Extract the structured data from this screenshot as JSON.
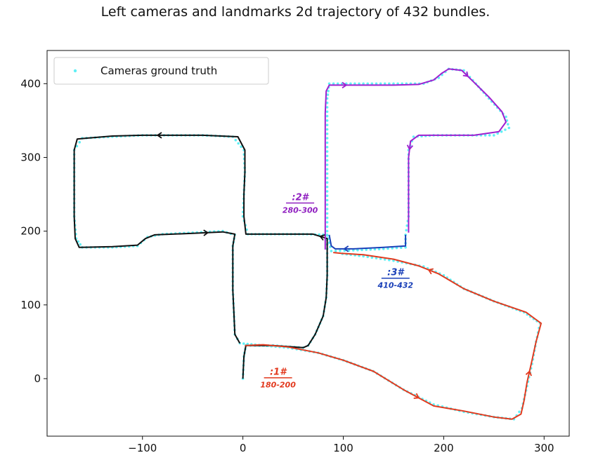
{
  "chart_data": {
    "type": "scatter",
    "title": "Left cameras and landmarks 2d trajectory of 432 bundles.",
    "xlabel": "",
    "ylabel": "",
    "xlim": [
      -195,
      325
    ],
    "ylim": [
      -78,
      445
    ],
    "xticks": [
      -100,
      0,
      100,
      200,
      300
    ],
    "xtick_labels": [
      "−100",
      "0",
      "100",
      "200",
      "300"
    ],
    "yticks": [
      0,
      100,
      200,
      300,
      400
    ],
    "ytick_labels": [
      "0",
      "100",
      "200",
      "300",
      "400"
    ],
    "grid": false,
    "legend": {
      "placement": "top-left",
      "entries": [
        {
          "name": "Cameras ground truth",
          "color": "#5ff0f5",
          "marker": "dot"
        }
      ]
    },
    "series": [
      {
        "name": "Cameras ground truth",
        "style": "dots",
        "color": "#5ff0f5",
        "points": [
          [
            0,
            0
          ],
          [
            1,
            30
          ],
          [
            3,
            45
          ],
          [
            30,
            45
          ],
          [
            60,
            42
          ],
          [
            65,
            45
          ],
          [
            72,
            60
          ],
          [
            80,
            85
          ],
          [
            83,
            110
          ],
          [
            84,
            140
          ],
          [
            84,
            170
          ],
          [
            84,
            200
          ],
          [
            84,
            230
          ],
          [
            84,
            260
          ],
          [
            84,
            290
          ],
          [
            84,
            320
          ],
          [
            84,
            350
          ],
          [
            84,
            380
          ],
          [
            86,
            400
          ],
          [
            120,
            400
          ],
          [
            150,
            400
          ],
          [
            180,
            400
          ],
          [
            195,
            408
          ],
          [
            205,
            420
          ],
          [
            220,
            418
          ],
          [
            232,
            400
          ],
          [
            245,
            380
          ],
          [
            262,
            355
          ],
          [
            265,
            340
          ],
          [
            250,
            330
          ],
          [
            220,
            330
          ],
          [
            190,
            330
          ],
          [
            170,
            328
          ],
          [
            165,
            310
          ],
          [
            165,
            280
          ],
          [
            165,
            250
          ],
          [
            165,
            220
          ],
          [
            162,
            195
          ],
          [
            162,
            178
          ],
          [
            140,
            176
          ],
          [
            110,
            174
          ],
          [
            88,
            173
          ],
          [
            85,
            190
          ],
          [
            84,
            195
          ],
          [
            60,
            196
          ],
          [
            40,
            196
          ],
          [
            20,
            196
          ],
          [
            5,
            196
          ],
          [
            0,
            220
          ],
          [
            1,
            250
          ],
          [
            2,
            280
          ],
          [
            1,
            310
          ],
          [
            -10,
            328
          ],
          [
            -40,
            330
          ],
          [
            -70,
            330
          ],
          [
            -100,
            330
          ],
          [
            -130,
            328
          ],
          [
            -160,
            326
          ],
          [
            -168,
            310
          ],
          [
            -168,
            280
          ],
          [
            -168,
            250
          ],
          [
            -168,
            220
          ],
          [
            -166,
            190
          ],
          [
            -160,
            178
          ],
          [
            -130,
            178
          ],
          [
            -105,
            180
          ],
          [
            -95,
            192
          ],
          [
            -80,
            196
          ],
          [
            -50,
            198
          ],
          [
            -20,
            200
          ],
          [
            -8,
            195
          ],
          [
            -10,
            180
          ],
          [
            -10,
            150
          ],
          [
            -10,
            120
          ],
          [
            -9,
            90
          ],
          [
            -8,
            60
          ],
          [
            -3,
            48
          ],
          [
            20,
            45
          ],
          [
            45,
            42
          ],
          [
            75,
            35
          ],
          [
            100,
            25
          ],
          [
            130,
            10
          ],
          [
            160,
            -15
          ],
          [
            190,
            -35
          ],
          [
            220,
            -45
          ],
          [
            250,
            -52
          ],
          [
            270,
            -55
          ],
          [
            278,
            -40
          ],
          [
            283,
            -10
          ],
          [
            288,
            20
          ],
          [
            292,
            50
          ],
          [
            296,
            75
          ],
          [
            280,
            90
          ],
          [
            250,
            105
          ],
          [
            220,
            122
          ],
          [
            200,
            140
          ],
          [
            180,
            152
          ],
          [
            150,
            160
          ],
          [
            120,
            166
          ],
          [
            95,
            170
          ]
        ]
      }
    ],
    "annotation_paths": [
      {
        "name": "path-black",
        "color": "#111111",
        "points": [
          [
            0,
            0
          ],
          [
            1,
            30
          ],
          [
            3,
            45
          ],
          [
            30,
            45
          ],
          [
            60,
            42
          ],
          [
            65,
            45
          ],
          [
            72,
            60
          ],
          [
            80,
            85
          ],
          [
            83,
            110
          ],
          [
            84,
            140
          ],
          [
            84,
            170
          ],
          [
            84,
            190
          ],
          [
            70,
            196
          ],
          [
            40,
            196
          ],
          [
            10,
            196
          ],
          [
            3,
            196
          ],
          [
            1,
            220
          ],
          [
            1,
            250
          ],
          [
            2,
            280
          ],
          [
            2,
            310
          ],
          [
            -5,
            328
          ],
          [
            -40,
            330
          ],
          [
            -70,
            330
          ],
          [
            -100,
            330
          ],
          [
            -130,
            329
          ],
          [
            -165,
            325
          ],
          [
            -168,
            310
          ],
          [
            -168,
            280
          ],
          [
            -168,
            250
          ],
          [
            -168,
            220
          ],
          [
            -167,
            190
          ],
          [
            -163,
            178
          ],
          [
            -130,
            179
          ],
          [
            -105,
            181
          ],
          [
            -97,
            190
          ],
          [
            -88,
            195
          ],
          [
            -50,
            197
          ],
          [
            -20,
            199
          ],
          [
            -8,
            196
          ],
          [
            -10,
            180
          ],
          [
            -10,
            150
          ],
          [
            -10,
            120
          ],
          [
            -9,
            90
          ],
          [
            -8,
            60
          ],
          [
            -3,
            48
          ]
        ]
      },
      {
        "name": "path-purple",
        "color": "#a020d0",
        "points": [
          [
            82,
            175
          ],
          [
            82,
            200
          ],
          [
            82,
            240
          ],
          [
            82,
            280
          ],
          [
            82,
            320
          ],
          [
            82,
            360
          ],
          [
            83,
            390
          ],
          [
            86,
            398
          ],
          [
            120,
            398
          ],
          [
            150,
            398
          ],
          [
            175,
            399
          ],
          [
            190,
            405
          ],
          [
            198,
            414
          ],
          [
            205,
            420
          ],
          [
            218,
            418
          ],
          [
            230,
            402
          ],
          [
            245,
            382
          ],
          [
            258,
            362
          ],
          [
            262,
            348
          ],
          [
            255,
            335
          ],
          [
            230,
            330
          ],
          [
            200,
            330
          ],
          [
            175,
            330
          ],
          [
            167,
            322
          ],
          [
            165,
            300
          ],
          [
            165,
            270
          ],
          [
            165,
            240
          ],
          [
            165,
            215
          ],
          [
            165,
            198
          ]
        ]
      },
      {
        "name": "path-blue",
        "color": "#1a40b8",
        "points": [
          [
            162,
            195
          ],
          [
            162,
            180
          ],
          [
            140,
            178
          ],
          [
            110,
            176
          ],
          [
            92,
            176
          ],
          [
            88,
            180
          ],
          [
            86,
            195
          ]
        ]
      },
      {
        "name": "path-red",
        "color": "#e23a1f",
        "points": [
          [
            2,
            45
          ],
          [
            20,
            46
          ],
          [
            45,
            43
          ],
          [
            75,
            35
          ],
          [
            100,
            25
          ],
          [
            130,
            10
          ],
          [
            160,
            -15
          ],
          [
            190,
            -37
          ],
          [
            220,
            -44
          ],
          [
            250,
            -52
          ],
          [
            268,
            -55
          ],
          [
            277,
            -48
          ],
          [
            280,
            -30
          ],
          [
            283,
            -5
          ],
          [
            288,
            25
          ],
          [
            292,
            50
          ],
          [
            297,
            75
          ],
          [
            282,
            90
          ],
          [
            250,
            105
          ],
          [
            220,
            122
          ],
          [
            195,
            142
          ],
          [
            175,
            153
          ],
          [
            150,
            162
          ],
          [
            120,
            168
          ],
          [
            98,
            170
          ],
          [
            90,
            171
          ]
        ]
      }
    ],
    "annotations": [
      {
        "name": "annotation-1",
        "color": "#e23a1f",
        "lines": [
          ":1#",
          "180-200"
        ],
        "at": [
          35,
          5
        ]
      },
      {
        "name": "annotation-2",
        "color": "#9020c0",
        "lines": [
          ":2#",
          "280-300"
        ],
        "at": [
          57,
          242
        ]
      },
      {
        "name": "annotation-3",
        "color": "#1a40b8",
        "lines": [
          ":3#",
          "410-432"
        ],
        "at": [
          152,
          140
        ]
      }
    ]
  }
}
